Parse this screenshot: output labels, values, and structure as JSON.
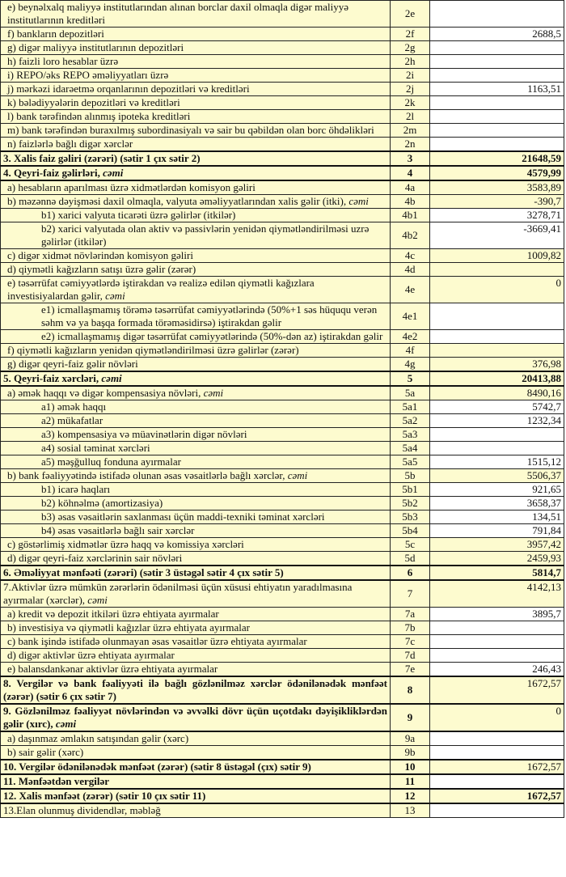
{
  "colors": {
    "label_bg": "#fdfbcf",
    "value_bg_leaf": "#ffffff"
  },
  "rows": [
    {
      "label": "e) beynəlxalq maliyyə institutlarından alınan borclar daxil olmaqla digər maliyyə institutlarının kreditləri",
      "code": "2e",
      "value": "",
      "indent": 0,
      "white": true
    },
    {
      "label": "f) bankların depozitləri",
      "code": "2f",
      "value": "2688,5",
      "indent": 0,
      "white": true
    },
    {
      "label": "g) digər maliyyə institutlarının depozitləri",
      "code": "2g",
      "value": "",
      "indent": 0,
      "white": true
    },
    {
      "label": "h) faizli loro hesablar üzrə",
      "code": "2h",
      "value": "",
      "indent": 0,
      "white": true
    },
    {
      "label": "i) REPO/əks REPO əməliyyatları üzrə",
      "code": "2i",
      "value": "",
      "indent": 0,
      "white": true
    },
    {
      "label": "j) mərkəzi idarəetmə orqanlarının depozitləri və kreditləri",
      "code": "2j",
      "value": "1163,51",
      "indent": 0,
      "white": true
    },
    {
      "label": "k) bələdiyyələrin depozitləri və kreditləri",
      "code": "2k",
      "value": "",
      "indent": 0,
      "white": true
    },
    {
      "label": "l) bank tərəfindən alınmış ipoteka kreditləri",
      "code": "2l",
      "value": "",
      "indent": 0,
      "white": true
    },
    {
      "label": "m) bank tərəfindən buraxılmış subordinasiyalı və sair bu qəbildən olan borc öhdəlikləri",
      "code": "2m",
      "value": "",
      "indent": 0,
      "white": true
    },
    {
      "label": "n) faizlərlə bağlı digər xərclər",
      "code": "2n",
      "value": "",
      "indent": 0,
      "white": true
    },
    {
      "label": "3. Xalis faiz gəliri (zərəri) (sətir 1 çıx sətir 2)",
      "code": "3",
      "value": "21648,59",
      "bold": true
    },
    {
      "label": "4. Qeyri-faiz gəlirləri, ",
      "em": "cəmi",
      "code": "4",
      "value": "4579,99",
      "bold": true
    },
    {
      "label": "a) hesabların aparılması üzrə xidmətlərdən komisyon gəliri",
      "code": "4a",
      "value": "3583,89",
      "indent": 0
    },
    {
      "label": "b) məzənnə dəyişməsi daxil olmaqla, valyuta əməliyyatlarından xalis gəlir (itki), ",
      "em": "cəmi",
      "code": "4b",
      "value": "-390,7",
      "indent": 0,
      "top": true
    },
    {
      "label": "b1) xarici valyuta ticarəti üzrə gəlirlər (itkilər)",
      "code": "4b1",
      "value": "3278,71",
      "indent": 1,
      "white": true
    },
    {
      "label": "b2) xarici valyutada olan aktiv və passivlərin yenidən qiymətləndirilməsi uzrə gəlirlər (itkilər)",
      "code": "4b2",
      "value": "-3669,41",
      "indent": 1,
      "white": true,
      "top": true
    },
    {
      "label": "c) digər xidmət növlərindən komisyon gəliri",
      "code": "4c",
      "value": "1009,82",
      "indent": 0
    },
    {
      "label": "d) qiymətli kağızların satışı üzrə gəlir (zərər)",
      "code": "4d",
      "value": "",
      "indent": 0
    },
    {
      "label": "e) təsərrüfat cəmiyyətlərdə iştirakdan və realizə edilən qiymətli kağızlara investisiyalardan gəlir, ",
      "em": "cəmi",
      "code": "4e",
      "value": "0",
      "indent": 0,
      "top": true
    },
    {
      "label": "e1) icmallaşmamış törəmə təsərrüfat cəmiyyətlərində  (50%+1 səs hüququ verən səhm və ya başqa formada törəməsidirsə) iştirakdan gəlir",
      "code": "4e1",
      "value": "",
      "indent": 1,
      "white": true
    },
    {
      "label": "e2) icmallaşmamış digər təsərrüfat cəmiyyətlərində (50%-dən az) iştirakdan gəlir",
      "code": "4e2",
      "value": "",
      "indent": 1,
      "white": true
    },
    {
      "label": "f) qiymətli kağızların yenidən qiymətləndirilməsi üzrə gəlirlər (zərər)",
      "code": "4f",
      "value": "",
      "indent": 0
    },
    {
      "label": "g) digər qeyri-faiz gəlir növləri",
      "code": "4g",
      "value": "376,98",
      "indent": 0
    },
    {
      "label": "5. Qeyri-faiz xərcləri, ",
      "em": "cəmi",
      "code": "5",
      "value": "20413,88",
      "bold": true
    },
    {
      "label": "a) əmək haqqı və digər kompensasiya növləri, ",
      "em": "cəmi",
      "code": "5a",
      "value": "8490,16",
      "indent": 0
    },
    {
      "label": "a1) əmək haqqı",
      "code": "5a1",
      "value": "5742,7",
      "indent": 1,
      "white": true
    },
    {
      "label": "a2) mükafatlar",
      "code": "5a2",
      "value": "1232,34",
      "indent": 1,
      "white": true
    },
    {
      "label": "a3) kompensasiya və müavinətlərin digər növləri",
      "code": "5a3",
      "value": "",
      "indent": 1,
      "white": true
    },
    {
      "label": "a4) sosial təminat xərcləri",
      "code": "5a4",
      "value": "",
      "indent": 1,
      "white": true
    },
    {
      "label": "a5) məşğulluq fonduna ayırmalar",
      "code": "5a5",
      "value": "1515,12",
      "indent": 1,
      "white": true
    },
    {
      "label": "b) bank fəaliyyətində istifadə olunan əsas vəsaitlərlə bağlı xərclər, ",
      "em": "cəmi",
      "code": "5b",
      "value": "5506,37",
      "indent": 0
    },
    {
      "label": "b1) icarə haqları",
      "code": "5b1",
      "value": "921,65",
      "indent": 1,
      "white": true
    },
    {
      "label": "b2) köhnəlmə (amortizasiya)",
      "code": "5b2",
      "value": "3658,37",
      "indent": 1,
      "white": true
    },
    {
      "label": "b3) əsas vəsaitlərin saxlanması üçün maddi-texniki təminat xərcləri",
      "code": "5b3",
      "value": "134,51",
      "indent": 1,
      "white": true
    },
    {
      "label": "b4) əsas vəsaitlərlə bağlı sair xərclər",
      "code": "5b4",
      "value": "791,84",
      "indent": 1,
      "white": true
    },
    {
      "label": "c) göstərlimiş xidmətlər üzrə haqq və komissiya xərcləri",
      "code": "5c",
      "value": "3957,42",
      "indent": 0
    },
    {
      "label": "d) digər qeyri-faiz xərclərinin sair növləri",
      "code": "5d",
      "value": "2459,93",
      "indent": 0
    },
    {
      "label": "6. Əməliyyat mənfəəti (zərəri) (sətir 3 üstəgəl sətir 4 çıx sətir 5)",
      "code": "6",
      "value": "5814,7",
      "bold": true
    },
    {
      "label": "7.Aktivlər üzrə mümkün zərərlərin ödənilməsi üçün xüsusi ehtiyatın yaradılmasına ayırmalar (xərclər), ",
      "em": "cəmi",
      "code": "7",
      "value": "4142,13",
      "indent": -1,
      "top": true
    },
    {
      "label": "a) kredit və depozit itkiləri üzrə ehtiyata ayırmalar",
      "code": "7a",
      "value": "3895,7",
      "indent": 0,
      "white": true
    },
    {
      "label": "b) investisiya və qiymətli kağızlar üzrə ehtiyata ayırmalar",
      "code": "7b",
      "value": "",
      "indent": 0,
      "white": true
    },
    {
      "label": "c) bank işində istifadə olunmayan əsas vəsaitlər üzrə ehtiyata ayırmalar",
      "code": "7c",
      "value": "",
      "indent": 0,
      "white": true
    },
    {
      "label": "d) digər aktivlər üzrə ehtiyata ayırmalar",
      "code": "7d",
      "value": "",
      "indent": 0,
      "white": true
    },
    {
      "label": "e) balansdankənar aktivlər üzrə ehtiyata ayırmalar",
      "code": "7e",
      "value": "246,43",
      "indent": 0,
      "white": true
    },
    {
      "label": "8. Vergilər və bank fəaliyyəti ilə bağlı gözlənilməz xərclər ödənilənədək mənfəət (zərər) (sətir 6 çıx sətir 7)",
      "code": "8",
      "value": "1672,57",
      "bold": true,
      "top": true,
      "normalval": true
    },
    {
      "label": "9. Gözlənilməz fəaliyyət növlərindən və əvvəlki dövr üçün uçotdakı dəyişikliklərdən gəlir (xırc), ",
      "em": "cəmi",
      "code": "9",
      "value": "0",
      "bold": true,
      "top": true,
      "normalval": true
    },
    {
      "label": "a) daşınmaz əmlakın satışından gəlir (xərc)",
      "code": "9a",
      "value": "",
      "indent": 0,
      "white": true
    },
    {
      "label": "b) sair gəlir (xərc)",
      "code": "9b",
      "value": "",
      "indent": 0,
      "white": true
    },
    {
      "label": "10. Vergilər ödənilənədək mənfəət (zərər) (sətir 8 üstəgəl (çıx) sətir 9)",
      "code": "10",
      "value": "1672,57",
      "bold": true,
      "normalval": true
    },
    {
      "label": "11. Mənfəətdən vergilər",
      "code": "11",
      "value": "",
      "bold": true,
      "white": true
    },
    {
      "label": "12. Xalis mənfəət (zərər) (sətir 10 çıx sətir 11)",
      "code": "12",
      "value": "1672,57",
      "bold": true
    },
    {
      "label": "13.Elan olunmuş dividendlər, məbləğ",
      "code": "13",
      "value": "",
      "indent": -1,
      "white": true
    }
  ]
}
